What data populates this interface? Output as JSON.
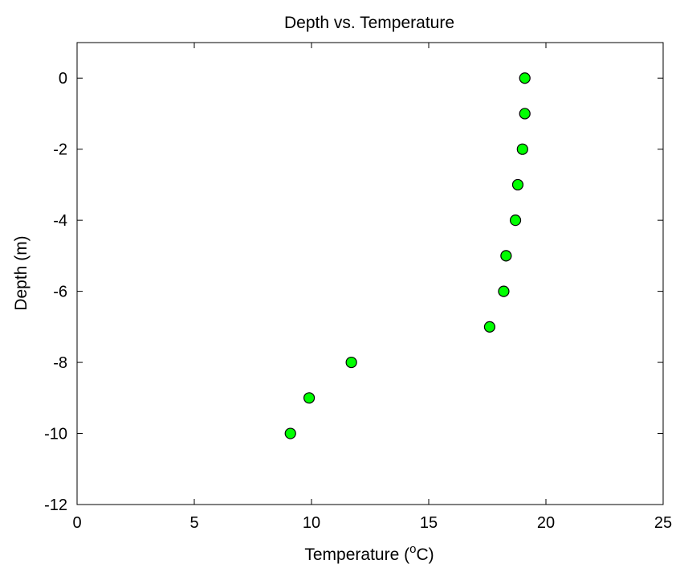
{
  "chart_data": {
    "type": "scatter",
    "title": "Depth vs. Temperature",
    "xlabel": {
      "prefix": "Temperature (",
      "superscript": "o",
      "suffix": "C)"
    },
    "ylabel": "Depth (m)",
    "xlim": [
      0,
      25
    ],
    "ylim": [
      -12,
      1
    ],
    "x_ticks": [
      0,
      5,
      10,
      15,
      20,
      25
    ],
    "y_ticks": [
      0,
      -2,
      -4,
      -6,
      -8,
      -10,
      -12
    ],
    "grid": false,
    "marker": {
      "shape": "circle",
      "face_color": "#00ff00",
      "edge_color": "#000000"
    },
    "points": [
      {
        "x": 19.1,
        "y": 0
      },
      {
        "x": 19.1,
        "y": -1
      },
      {
        "x": 19.0,
        "y": -2
      },
      {
        "x": 18.8,
        "y": -3
      },
      {
        "x": 18.7,
        "y": -4
      },
      {
        "x": 18.3,
        "y": -5
      },
      {
        "x": 18.2,
        "y": -6
      },
      {
        "x": 17.6,
        "y": -7
      },
      {
        "x": 11.7,
        "y": -8
      },
      {
        "x": 9.9,
        "y": -9
      },
      {
        "x": 9.1,
        "y": -10
      }
    ]
  }
}
